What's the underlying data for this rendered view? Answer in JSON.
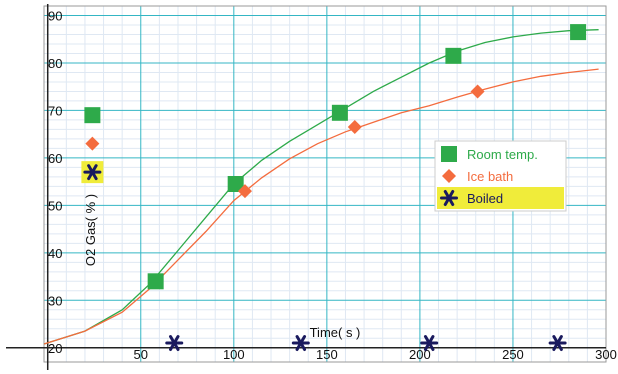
{
  "chart_data": {
    "type": "scatter",
    "xlabel": "Time( s )",
    "ylabel": "O2 Gas( % )",
    "xlim": [
      -2,
      300
    ],
    "ylim": [
      17,
      92
    ],
    "x_ticks": [
      50,
      100,
      150,
      200,
      250,
      300
    ],
    "y_ticks": [
      20,
      30,
      40,
      50,
      60,
      70,
      80,
      90
    ],
    "grid": true,
    "legend_position": "right",
    "series": [
      {
        "name": "Room temp.",
        "color": "#2eaa4a",
        "marker": "square",
        "points": [
          [
            58,
            34
          ],
          [
            101,
            54.5
          ],
          [
            157,
            69.5
          ],
          [
            218,
            81.5
          ],
          [
            285,
            86.5
          ]
        ],
        "curve": [
          [
            -2,
            20.8
          ],
          [
            20,
            23.5
          ],
          [
            40,
            28
          ],
          [
            55,
            33.5
          ],
          [
            70,
            40.5
          ],
          [
            85,
            47.5
          ],
          [
            100,
            54.5
          ],
          [
            115,
            59.5
          ],
          [
            130,
            63.5
          ],
          [
            145,
            67
          ],
          [
            160,
            70.5
          ],
          [
            175,
            74
          ],
          [
            190,
            77
          ],
          [
            205,
            80
          ],
          [
            220,
            82.5
          ],
          [
            235,
            84.3
          ],
          [
            250,
            85.5
          ],
          [
            265,
            86.3
          ],
          [
            280,
            86.8
          ],
          [
            296,
            87
          ]
        ]
      },
      {
        "name": "Ice bath",
        "color": "#f46c3e",
        "marker": "diamond",
        "points": [
          [
            106,
            53
          ],
          [
            165,
            66.5
          ],
          [
            231,
            74
          ]
        ],
        "curve": [
          [
            -2,
            20.8
          ],
          [
            20,
            23.5
          ],
          [
            40,
            27.5
          ],
          [
            55,
            32.5
          ],
          [
            70,
            38.5
          ],
          [
            85,
            44.5
          ],
          [
            100,
            51
          ],
          [
            115,
            55.8
          ],
          [
            130,
            59.8
          ],
          [
            145,
            63
          ],
          [
            160,
            65.5
          ],
          [
            175,
            67.5
          ],
          [
            190,
            69.5
          ],
          [
            205,
            71
          ],
          [
            220,
            72.8
          ],
          [
            235,
            74.5
          ],
          [
            250,
            76
          ],
          [
            265,
            77.2
          ],
          [
            280,
            78
          ],
          [
            296,
            78.7
          ]
        ]
      },
      {
        "name": "Boiled",
        "color": "#1a1a5e",
        "marker": "asterisk",
        "points": [
          [
            68,
            21
          ],
          [
            136,
            21
          ],
          [
            205,
            21
          ],
          [
            274,
            21
          ]
        ],
        "curve": []
      }
    ],
    "side_legend": [
      {
        "series": "Room temp.",
        "y": 69
      },
      {
        "series": "Ice bath",
        "y": 63
      },
      {
        "series": "Boiled",
        "y": 57,
        "highlight": "#f0ec3a"
      }
    ],
    "legend_highlight": "#f0ec3a"
  }
}
